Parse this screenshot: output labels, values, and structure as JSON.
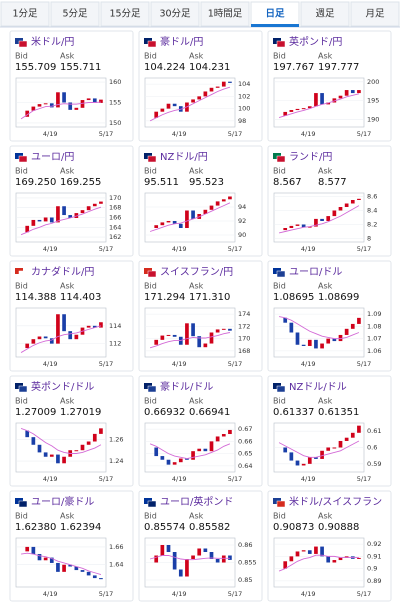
{
  "tabs": [
    "1分足",
    "5分足",
    "15分足",
    "30分足",
    "1時間足",
    "日足",
    "週足",
    "月足"
  ],
  "colors": {
    "up": "#d0021b",
    "down": "#1a3fa8",
    "ma": "#d36ad6"
  },
  "cards": [
    {
      "name": "米ドル/円",
      "bid_label": "Bid",
      "ask_label": "Ask",
      "bid": "155.709",
      "ask": "155.711",
      "chart": {
        "type": "candlestick",
        "x_labels": [
          "4/19",
          "5/17"
        ],
        "ylim": [
          149,
          161
        ],
        "yticks": [
          150,
          155,
          160
        ],
        "values": [
          151.5,
          153,
          154,
          154.6,
          154.8,
          153.8,
          157.5,
          155,
          153.2,
          153.7,
          155.6,
          156,
          154.9,
          155.7
        ],
        "ma": [
          151,
          152,
          153,
          153.5,
          154,
          154.1,
          154.5,
          154.7,
          154.6,
          154.6,
          154.8,
          155,
          155,
          155.1
        ]
      }
    },
    {
      "name": "豪ドル/円",
      "bid_label": "Bid",
      "ask_label": "Ask",
      "bid": "104.224",
      "ask": "104.231",
      "chart": {
        "type": "candlestick",
        "x_labels": [
          "4/19",
          "5/17"
        ],
        "ylim": [
          97,
          105
        ],
        "yticks": [
          98,
          100,
          102,
          104
        ],
        "values": [
          98.5,
          99.5,
          100,
          100.8,
          100.4,
          99.5,
          101,
          101.5,
          102,
          102.8,
          103.4,
          103.6,
          104.4,
          104.2
        ],
        "ma": [
          98,
          98.5,
          99,
          99.4,
          99.7,
          99.9,
          100.3,
          100.8,
          101.3,
          101.8,
          102.3,
          102.8,
          103.2,
          103.5
        ]
      }
    },
    {
      "name": "英ポンド/円",
      "bid_label": "Bid",
      "ask_label": "Ask",
      "bid": "197.767",
      "ask": "197.777",
      "chart": {
        "type": "candlestick",
        "x_labels": [
          "4/19",
          "5/17"
        ],
        "ylim": [
          188,
          201
        ],
        "yticks": [
          190,
          195,
          200
        ],
        "values": [
          191,
          192,
          192.5,
          192.8,
          193,
          193.5,
          197,
          194,
          194.5,
          195.6,
          196.3,
          197.8,
          197,
          197.8
        ],
        "ma": [
          190.5,
          191,
          191.5,
          192,
          192.4,
          192.9,
          193.5,
          194,
          194.4,
          194.9,
          195.4,
          196,
          196.4,
          196.8
        ]
      }
    },
    {
      "name": "ユーロ/円",
      "bid_label": "Bid",
      "ask_label": "Ask",
      "bid": "169.250",
      "ask": "169.255",
      "chart": {
        "type": "candlestick",
        "x_labels": [
          "4/19",
          "5/17"
        ],
        "ylim": [
          161,
          171
        ],
        "yticks": [
          162,
          164,
          166,
          168,
          170
        ],
        "values": [
          163,
          164.3,
          165.5,
          165.2,
          166,
          165,
          168.3,
          166.5,
          165.9,
          166.9,
          167.5,
          168.3,
          168.8,
          169.25
        ],
        "ma": [
          162.5,
          163,
          163.6,
          164,
          164.5,
          164.8,
          165.3,
          165.6,
          165.9,
          166.3,
          166.7,
          167.2,
          167.7,
          168.1
        ]
      }
    },
    {
      "name": "NZドル/円",
      "bid_label": "Bid",
      "ask_label": "Ask",
      "bid": "95.511",
      "ask": "95.523",
      "chart": {
        "type": "candlestick",
        "x_labels": [
          "4/19",
          "5/17"
        ],
        "ylim": [
          89,
          96
        ],
        "yticks": [
          90,
          92,
          94
        ],
        "values": [
          91,
          91.4,
          91.8,
          92,
          91.6,
          91,
          93.5,
          92.3,
          93,
          93.6,
          94.2,
          94.8,
          95.1,
          95.5
        ],
        "ma": [
          90.5,
          90.8,
          91.1,
          91.4,
          91.6,
          91.7,
          92,
          92.3,
          92.6,
          93,
          93.4,
          93.8,
          94.2,
          94.6
        ]
      }
    },
    {
      "name": "ランド/円",
      "bid_label": "Bid",
      "ask_label": "Ask",
      "bid": "8.567",
      "ask": "8.577",
      "chart": {
        "type": "candlestick",
        "x_labels": [
          "4/19",
          "5/17"
        ],
        "ylim": [
          7.95,
          8.65
        ],
        "yticks": [
          8,
          8.2,
          8.4,
          8.6
        ],
        "values": [
          8.12,
          8.15,
          8.18,
          8.2,
          8.16,
          8.17,
          8.28,
          8.25,
          8.32,
          8.4,
          8.45,
          8.5,
          8.55,
          8.567
        ],
        "ma": [
          8.08,
          8.1,
          8.12,
          8.14,
          8.16,
          8.17,
          8.19,
          8.21,
          8.24,
          8.28,
          8.32,
          8.37,
          8.42,
          8.47
        ]
      }
    },
    {
      "name": "カナダドル/円",
      "bid_label": "Bid",
      "ask_label": "Ask",
      "bid": "114.388",
      "ask": "114.403",
      "chart": {
        "type": "candlestick",
        "x_labels": [
          "4/19",
          "5/17"
        ],
        "ylim": [
          110.5,
          116
        ],
        "yticks": [
          112,
          114
        ],
        "values": [
          111.5,
          112,
          112.5,
          112.8,
          112.6,
          112,
          115.3,
          113.4,
          112.5,
          113,
          113.8,
          114,
          113.8,
          114.4
        ],
        "ma": [
          111,
          111.4,
          111.8,
          112.1,
          112.3,
          112.4,
          112.8,
          113,
          113.1,
          113.2,
          113.4,
          113.6,
          113.8,
          114
        ]
      }
    },
    {
      "name": "スイスフラン/円",
      "bid_label": "Bid",
      "ask_label": "Ask",
      "bid": "171.294",
      "ask": "171.310",
      "chart": {
        "type": "candlestick",
        "x_labels": [
          "4/19",
          "5/17"
        ],
        "ylim": [
          167,
          175
        ],
        "yticks": [
          168,
          170,
          172,
          174
        ],
        "values": [
          169,
          169.8,
          170.5,
          170.6,
          170.3,
          169,
          172.5,
          170.4,
          168.6,
          169.2,
          171,
          171.5,
          171.6,
          171.3
        ],
        "ma": [
          168.5,
          168.8,
          169.2,
          169.5,
          169.7,
          169.7,
          170,
          170.2,
          170.1,
          170.1,
          170.3,
          170.5,
          170.8,
          171
        ]
      }
    },
    {
      "name": "ユーロ/ドル",
      "bid_label": "Bid",
      "ask_label": "Ask",
      "bid": "1.08695",
      "ask": "1.08699",
      "chart": {
        "type": "candlestick",
        "x_labels": [
          "4/19",
          "5/17"
        ],
        "ylim": [
          1.055,
          1.095
        ],
        "yticks": [
          1.06,
          1.07,
          1.08,
          1.09
        ],
        "values": [
          1.087,
          1.083,
          1.075,
          1.065,
          1.064,
          1.069,
          1.062,
          1.066,
          1.07,
          1.068,
          1.073,
          1.078,
          1.082,
          1.08695
        ],
        "ma": [
          1.088,
          1.087,
          1.085,
          1.082,
          1.079,
          1.076,
          1.074,
          1.072,
          1.071,
          1.07,
          1.07,
          1.071,
          1.073,
          1.075
        ]
      }
    },
    {
      "name": "英ポンド/ドル",
      "bid_label": "Bid",
      "ask_label": "Ask",
      "bid": "1.27009",
      "ask": "1.27019",
      "chart": {
        "type": "candlestick",
        "x_labels": [
          "4/19",
          "5/17"
        ],
        "ylim": [
          1.23,
          1.275
        ],
        "yticks": [
          1.24,
          1.26
        ],
        "values": [
          1.268,
          1.262,
          1.255,
          1.248,
          1.244,
          1.246,
          1.238,
          1.244,
          1.25,
          1.25,
          1.255,
          1.258,
          1.265,
          1.27009
        ],
        "ma": [
          1.27,
          1.268,
          1.265,
          1.261,
          1.257,
          1.254,
          1.25,
          1.248,
          1.247,
          1.247,
          1.248,
          1.25,
          1.252,
          1.255
        ]
      }
    },
    {
      "name": "豪ドル/ドル",
      "bid_label": "Bid",
      "ask_label": "Ask",
      "bid": "0.66932",
      "ask": "0.66941",
      "chart": {
        "type": "candlestick",
        "x_labels": [
          "4/19",
          "5/17"
        ],
        "ylim": [
          0.635,
          0.675
        ],
        "yticks": [
          0.64,
          0.65,
          0.66,
          0.67
        ],
        "values": [
          0.655,
          0.648,
          0.645,
          0.641,
          0.643,
          0.646,
          0.645,
          0.652,
          0.654,
          0.652,
          0.66,
          0.664,
          0.666,
          0.66932
        ],
        "ma": [
          0.658,
          0.656,
          0.653,
          0.65,
          0.648,
          0.647,
          0.646,
          0.647,
          0.648,
          0.649,
          0.651,
          0.653,
          0.656,
          0.658
        ]
      }
    },
    {
      "name": "NZドル/ドル",
      "bid_label": "Bid",
      "ask_label": "Ask",
      "bid": "0.61337",
      "ask": "0.61351",
      "chart": {
        "type": "candlestick",
        "x_labels": [
          "4/19",
          "5/17"
        ],
        "ylim": [
          0.585,
          0.615
        ],
        "yticks": [
          0.59,
          0.6,
          0.61
        ],
        "values": [
          0.6,
          0.597,
          0.592,
          0.589,
          0.59,
          0.594,
          0.593,
          0.598,
          0.6,
          0.6,
          0.604,
          0.606,
          0.609,
          0.61337
        ],
        "ma": [
          0.603,
          0.601,
          0.599,
          0.597,
          0.595,
          0.594,
          0.594,
          0.595,
          0.596,
          0.597,
          0.598,
          0.6,
          0.602,
          0.604
        ]
      }
    },
    {
      "name": "ユーロ/豪ドル",
      "bid_label": "Bid",
      "ask_label": "Ask",
      "bid": "1.62380",
      "ask": "1.62394",
      "chart": {
        "type": "candlestick",
        "x_labels": [
          "4/19",
          "5/17"
        ],
        "ylim": [
          1.615,
          1.67
        ],
        "yticks": [
          1.64,
          1.66
        ],
        "values": [
          1.655,
          1.66,
          1.652,
          1.645,
          1.648,
          1.642,
          1.632,
          1.64,
          1.638,
          1.634,
          1.632,
          1.628,
          1.625,
          1.6238
        ],
        "ma": [
          1.652,
          1.653,
          1.652,
          1.65,
          1.649,
          1.647,
          1.644,
          1.642,
          1.64,
          1.638,
          1.636,
          1.633,
          1.631,
          1.629
        ]
      }
    },
    {
      "name": "ユーロ/英ポンド",
      "bid_label": "Bid",
      "ask_label": "Ask",
      "bid": "0.85574",
      "ask": "0.85582",
      "chart": {
        "type": "candlestick",
        "x_labels": [
          "4/19",
          "5/17"
        ],
        "ylim": [
          0.848,
          0.862
        ],
        "yticks": [
          0.85,
          0.855,
          0.86
        ],
        "values": [
          0.855,
          0.857,
          0.86,
          0.858,
          0.853,
          0.851,
          0.856,
          0.857,
          0.859,
          0.858,
          0.856,
          0.855,
          0.857,
          0.85574
        ],
        "ma": [
          0.856,
          0.8565,
          0.857,
          0.857,
          0.8565,
          0.856,
          0.8558,
          0.8558,
          0.856,
          0.8562,
          0.8563,
          0.8562,
          0.8562,
          0.8562
        ]
      }
    },
    {
      "name": "米ドル/スイスフラン",
      "bid_label": "Bid",
      "ask_label": "Ask",
      "bid": "0.90873",
      "ask": "0.90888",
      "chart": {
        "type": "candlestick",
        "x_labels": [
          "4/19",
          "5/17"
        ],
        "ylim": [
          0.885,
          0.925
        ],
        "yticks": [
          0.89,
          0.9,
          0.91,
          0.92
        ],
        "values": [
          0.9,
          0.906,
          0.91,
          0.914,
          0.915,
          0.912,
          0.918,
          0.91,
          0.905,
          0.907,
          0.909,
          0.91,
          0.908,
          0.90873
        ],
        "ma": [
          0.898,
          0.9,
          0.903,
          0.906,
          0.908,
          0.909,
          0.911,
          0.911,
          0.91,
          0.91,
          0.909,
          0.909,
          0.909,
          0.909
        ]
      }
    }
  ]
}
